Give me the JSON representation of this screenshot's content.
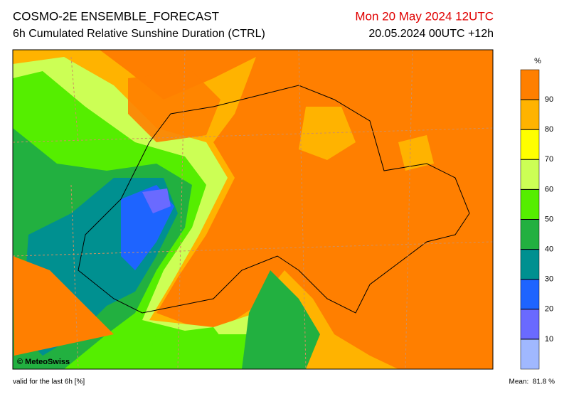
{
  "header": {
    "title": "COSMO-2E ENSEMBLE_FORECAST",
    "subtitle": "6h Cumulated Relative Sunshine Duration (CTRL)",
    "date": "Mon 20 May 2024 12UTC",
    "run": "20.05.2024 00UTC +12h"
  },
  "legend": {
    "unit": "%",
    "ticks": [
      90,
      80,
      70,
      60,
      50,
      40,
      30,
      20,
      10
    ],
    "colors": [
      "#ff7f00",
      "#ffb300",
      "#ffff00",
      "#ccff55",
      "#55ee00",
      "#22b040",
      "#009090",
      "#1e64ff",
      "#6a6aff",
      "#a0b8ff"
    ]
  },
  "map": {
    "credit": "© MeteoSwiss"
  },
  "footer": {
    "valid": "valid for the last 6h [%]",
    "mean": "Mean:  81.8 %"
  }
}
